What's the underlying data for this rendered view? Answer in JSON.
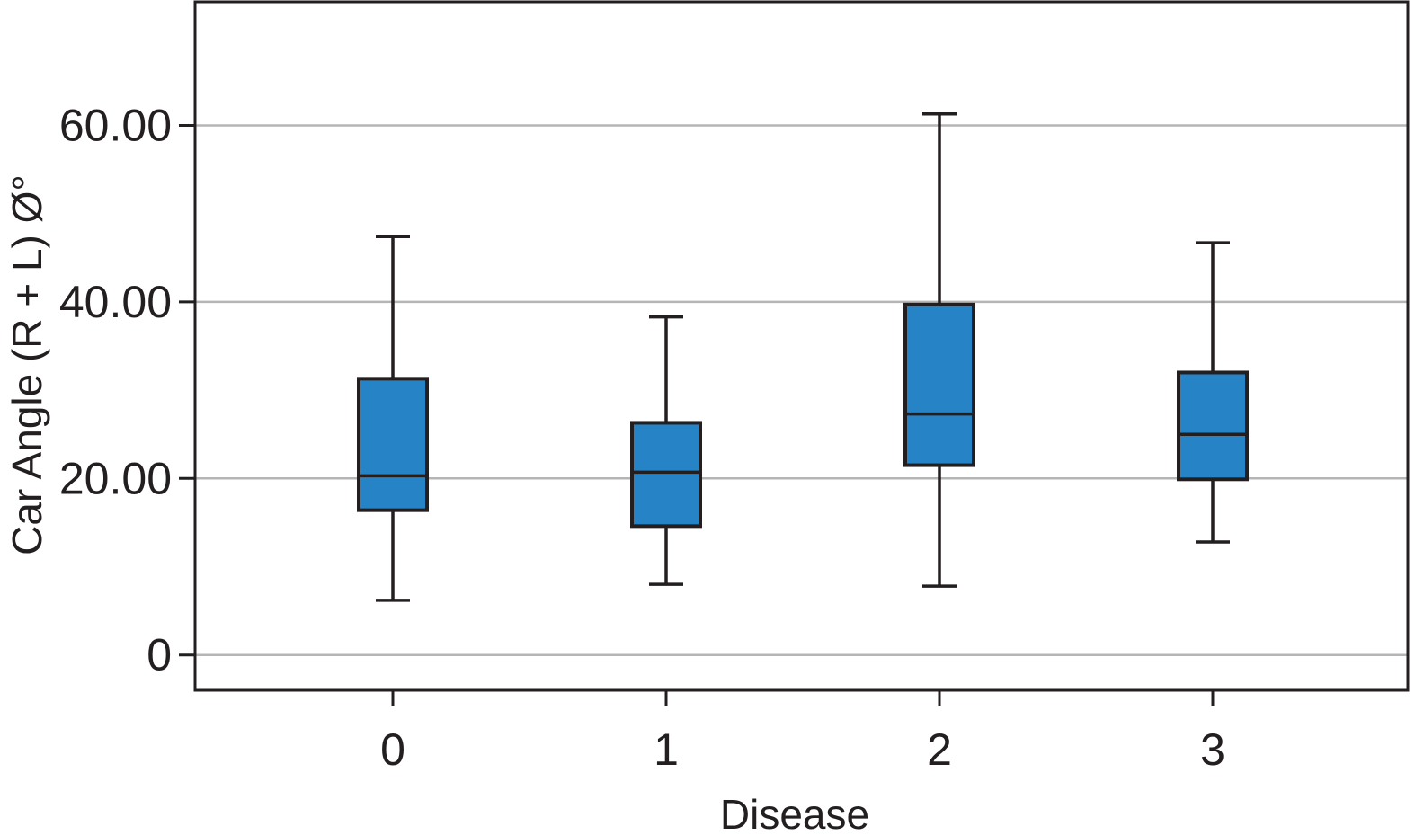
{
  "chart_data": {
    "type": "boxplot",
    "xlabel": "Disease",
    "ylabel": "Car Angle (R + L) Ø°",
    "categories": [
      "0",
      "1",
      "2",
      "3"
    ],
    "ylim": [
      -4,
      74
    ],
    "yticks": [
      0,
      20,
      40,
      60
    ],
    "ytick_labels": [
      "0",
      "20.00",
      "40.00",
      "60.00"
    ],
    "grid": "horizontal",
    "box_color": "#2683c6",
    "boxes": [
      {
        "category": "0",
        "min": 6.2,
        "q1": 16.4,
        "median": 20.3,
        "q3": 31.3,
        "max": 47.4
      },
      {
        "category": "1",
        "min": 8.0,
        "q1": 14.6,
        "median": 20.7,
        "q3": 26.3,
        "max": 38.3
      },
      {
        "category": "2",
        "min": 7.8,
        "q1": 21.5,
        "median": 27.3,
        "q3": 39.7,
        "max": 61.3
      },
      {
        "category": "3",
        "min": 12.8,
        "q1": 19.9,
        "median": 25.0,
        "q3": 32.0,
        "max": 46.7
      }
    ]
  }
}
